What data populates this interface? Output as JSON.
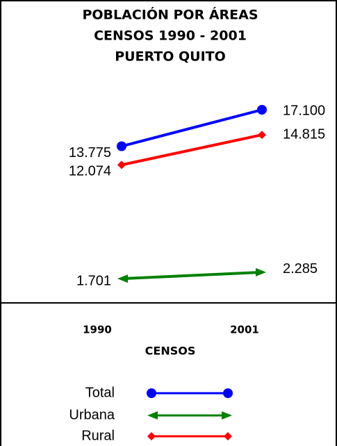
{
  "chart_data": {
    "type": "line",
    "title": [
      "POBLACIÓN POR ÁREAS",
      "CENSOS 1990 - 2001",
      "PUERTO QUITO"
    ],
    "x_label": "CENSOS",
    "categories": [
      "1990",
      "2001"
    ],
    "series": [
      {
        "name": "Total",
        "color": "#0000ff",
        "marker": "circle",
        "values": [
          13775,
          17100
        ],
        "value_labels": [
          "13.775",
          "17.100"
        ]
      },
      {
        "name": "Urbana",
        "color": "#008000",
        "marker": "arrow",
        "values": [
          1701,
          2285
        ],
        "value_labels": [
          "1.701",
          "2.285"
        ]
      },
      {
        "name": "Rural",
        "color": "#ff0000",
        "marker": "diamond",
        "values": [
          12074,
          14815
        ],
        "value_labels": [
          "12.074",
          "14.815"
        ]
      }
    ]
  }
}
